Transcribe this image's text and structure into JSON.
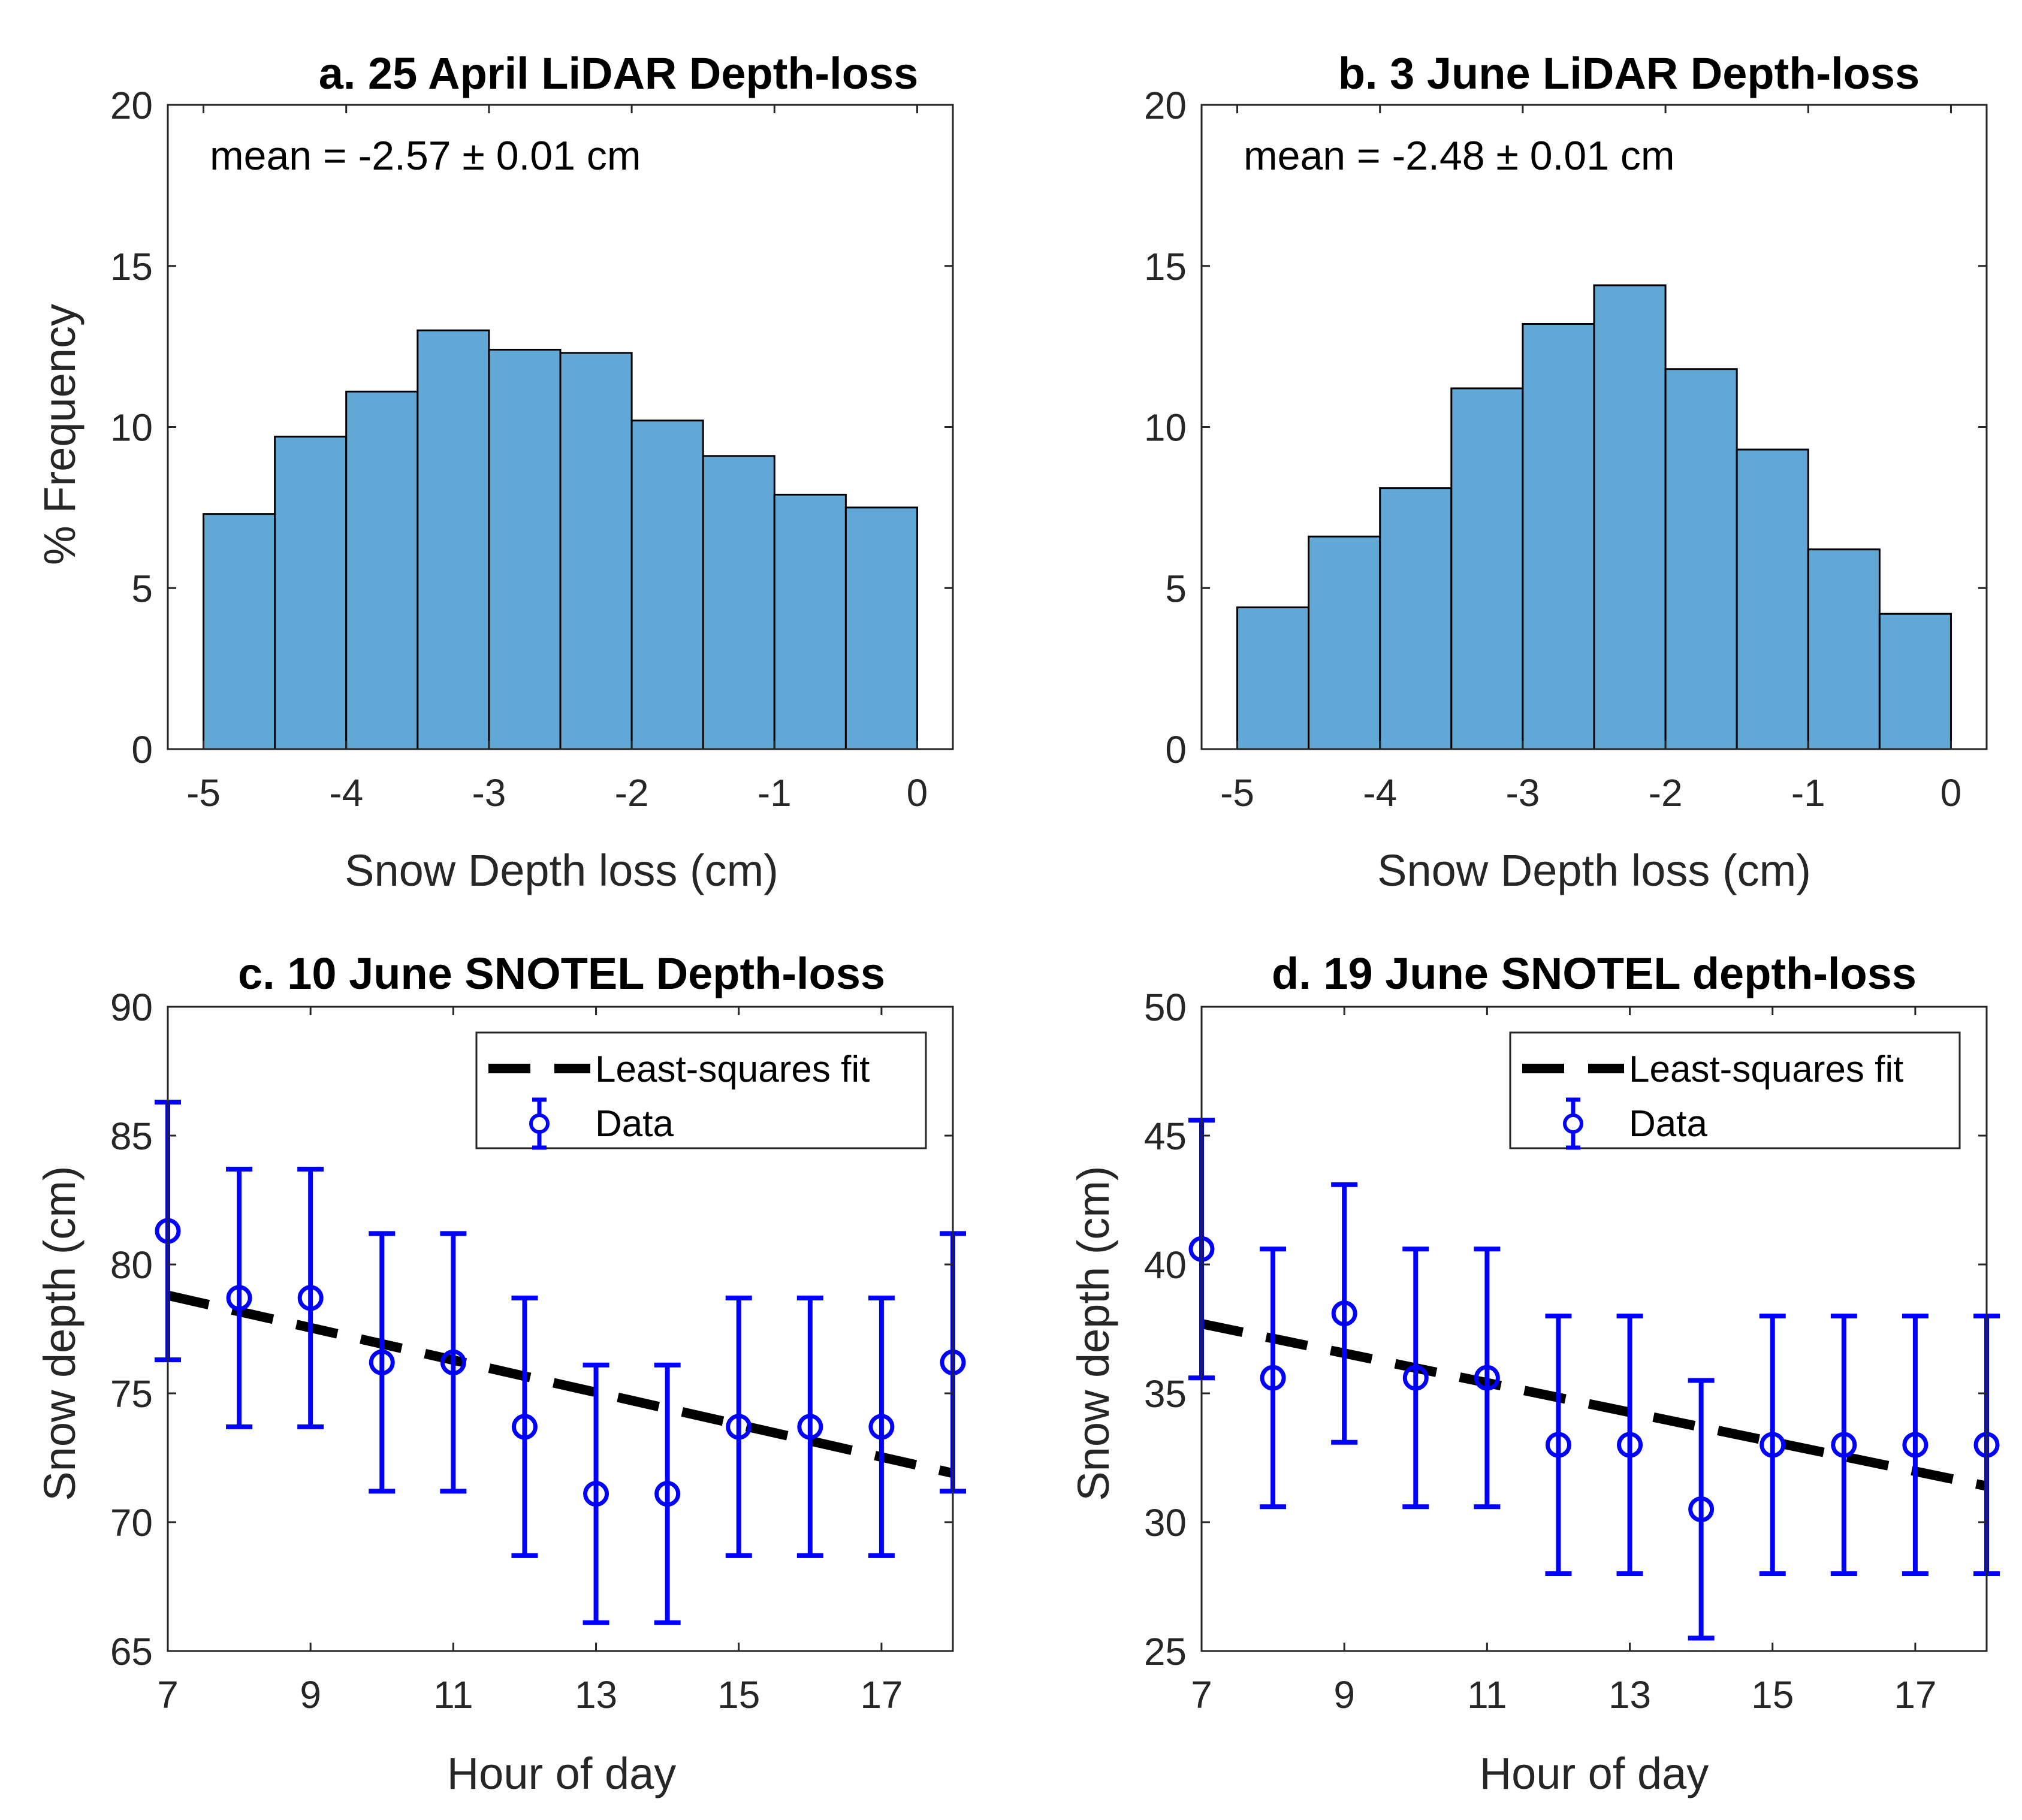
{
  "chart_data": [
    {
      "id": "a",
      "type": "bar",
      "title": "a. 25 April LiDAR Depth-loss",
      "annotation": "mean = -2.57 ± 0.01 cm",
      "xlabel": "Snow Depth loss (cm)",
      "ylabel": "% Frequency",
      "xlim": [
        -5.25,
        0.25
      ],
      "ylim": [
        0,
        20
      ],
      "xticks": [
        -5,
        -4,
        -3,
        -2,
        -1,
        0
      ],
      "yticks": [
        0,
        5,
        10,
        15,
        20
      ],
      "bin_edges": [
        -5,
        -4.5,
        -4,
        -3.5,
        -3,
        -2.5,
        -2,
        -1.5,
        -1,
        -0.5,
        0
      ],
      "values": [
        7.3,
        9.7,
        11.1,
        13.0,
        12.4,
        12.3,
        10.2,
        9.1,
        7.9,
        7.5
      ],
      "bar_color": "#62a8d6"
    },
    {
      "id": "b",
      "type": "bar",
      "title": "b. 3 June LiDAR Depth-loss",
      "annotation": "mean = -2.48 ± 0.01 cm",
      "xlabel": "Snow Depth loss (cm)",
      "ylabel": "",
      "xlim": [
        -5.25,
        0.25
      ],
      "ylim": [
        0,
        20
      ],
      "xticks": [
        -5,
        -4,
        -3,
        -2,
        -1,
        0
      ],
      "yticks": [
        0,
        5,
        10,
        15,
        20
      ],
      "bin_edges": [
        -5,
        -4.5,
        -4,
        -3.5,
        -3,
        -2.5,
        -2,
        -1.5,
        -1,
        -0.5,
        0
      ],
      "values": [
        4.4,
        6.6,
        8.1,
        11.2,
        13.2,
        14.4,
        11.8,
        9.3,
        6.2,
        4.2
      ],
      "bar_color": "#62a8d6"
    },
    {
      "id": "c",
      "type": "scatter",
      "title": "c. 10 June SNOTEL Depth-loss",
      "xlabel": "Hour of day",
      "ylabel": "Snow depth (cm)",
      "xlim": [
        7,
        18
      ],
      "ylim": [
        65,
        90
      ],
      "xticks": [
        7,
        9,
        11,
        13,
        15,
        17
      ],
      "yticks": [
        65,
        70,
        75,
        80,
        85,
        90
      ],
      "legend": {
        "fit_label": "Least-squares fit",
        "data_label": "Data",
        "placement": "top-right"
      },
      "x": [
        7,
        8,
        9,
        10,
        11,
        12,
        13,
        14,
        15,
        16,
        17,
        18
      ],
      "y": [
        81.3,
        78.7,
        78.7,
        76.2,
        76.2,
        73.7,
        71.1,
        71.1,
        73.7,
        73.7,
        73.7,
        76.2
      ],
      "error": 5.0,
      "fit": {
        "x": [
          7,
          18
        ],
        "y": [
          78.8,
          71.9
        ]
      },
      "data_color": "#0000ff",
      "fit_color": "#000000"
    },
    {
      "id": "d",
      "type": "scatter",
      "title": "d. 19 June SNOTEL depth-loss",
      "xlabel": "Hour of day",
      "ylabel": "Snow depth (cm)",
      "xlim": [
        7,
        18
      ],
      "ylim": [
        25,
        50
      ],
      "xticks": [
        7,
        9,
        11,
        13,
        15,
        17
      ],
      "yticks": [
        25,
        30,
        35,
        40,
        45,
        50
      ],
      "legend": {
        "fit_label": "Least-squares fit",
        "data_label": "Data",
        "placement": "top-right"
      },
      "x": [
        7,
        8,
        9,
        10,
        11,
        12,
        13,
        14,
        15,
        16,
        17,
        18
      ],
      "y": [
        40.6,
        35.6,
        38.1,
        35.6,
        35.6,
        33.0,
        33.0,
        30.5,
        33.0,
        33.0,
        33.0,
        33.0
      ],
      "error": 5.0,
      "fit": {
        "x": [
          7,
          18
        ],
        "y": [
          37.7,
          31.4
        ]
      },
      "data_color": "#0000ff",
      "fit_color": "#000000"
    }
  ]
}
